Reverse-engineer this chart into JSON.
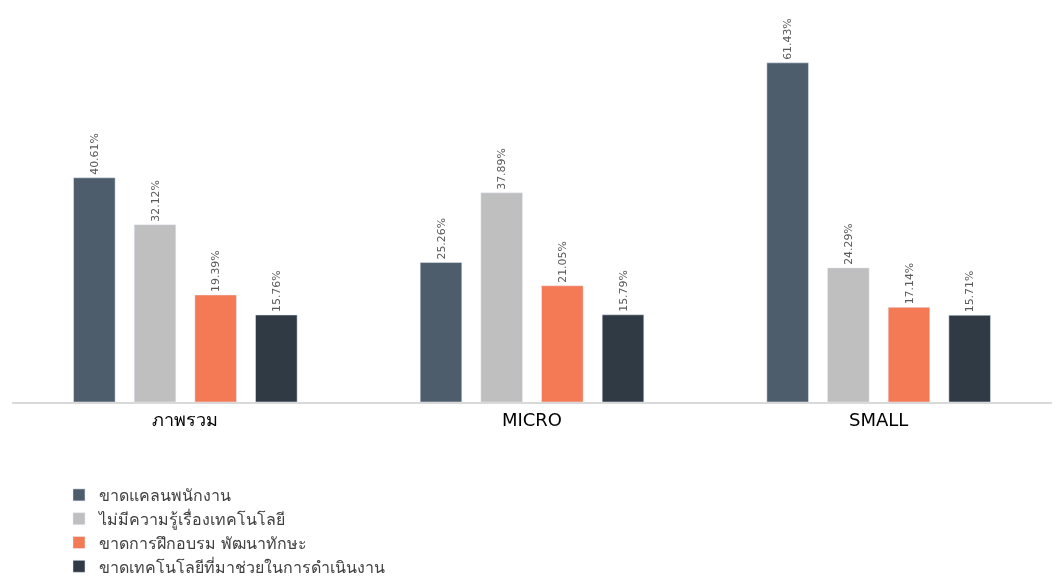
{
  "chart_data": {
    "type": "bar",
    "categories": [
      "ภาพรวม",
      "MICRO",
      "SMALL"
    ],
    "series": [
      {
        "name": "ขาดแคลนพนักงาน",
        "color": "#4e5d6c",
        "values": [
          40.61,
          25.26,
          61.43
        ],
        "value_labels": [
          "40.61%",
          "25.26%",
          "61.43%"
        ]
      },
      {
        "name": "ไม่มีความรู้เรื่องเทคโนโลยี",
        "color": "#bfbfbf",
        "values": [
          32.12,
          37.89,
          24.29
        ],
        "value_labels": [
          "32.12%",
          "37.89%",
          "24.29%"
        ]
      },
      {
        "name": "ขาดการฝึกอบรม พัฒนาทักษะ",
        "color": "#f47a56",
        "values": [
          19.39,
          21.05,
          17.14
        ],
        "value_labels": [
          "19.39%",
          "21.05%",
          "17.14%"
        ]
      },
      {
        "name": "ขาดเทคโนโลยีที่มาช่วยในการดำเนินงาน",
        "color": "#2f3a44",
        "values": [
          15.76,
          15.79,
          15.71
        ],
        "value_labels": [
          "15.76%",
          "15.79%",
          "15.71%"
        ]
      }
    ],
    "legend": "bottom",
    "tick_labels": "x"
  }
}
